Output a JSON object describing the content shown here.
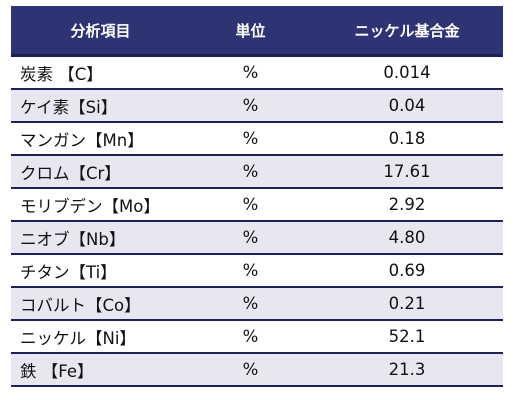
{
  "table": {
    "headers": [
      "分析項目",
      "単位",
      "ニッケル基合金"
    ],
    "rows": [
      {
        "item": "炭素 【C】",
        "unit": "%",
        "value": "0.014"
      },
      {
        "item": "ケイ素【Si】",
        "unit": "%",
        "value": "0.04"
      },
      {
        "item": "マンガン【Mn】",
        "unit": "%",
        "value": "0.18"
      },
      {
        "item": "クロム【Cr】",
        "unit": "%",
        "value": "17.61"
      },
      {
        "item": "モリブデン【Mo】",
        "unit": "%",
        "value": "2.92"
      },
      {
        "item": "ニオブ【Nb】",
        "unit": "%",
        "value": "4.80"
      },
      {
        "item": "チタン【Ti】",
        "unit": "%",
        "value": "0.69"
      },
      {
        "item": "コバルト【Co】",
        "unit": "%",
        "value": "0.21"
      },
      {
        "item": "ニッケル【Ni】",
        "unit": "%",
        "value": "52.1"
      },
      {
        "item": "鉄 【Fe】",
        "unit": "%",
        "value": "21.3"
      }
    ]
  },
  "colors": {
    "header_bg": "#2e3473",
    "header_text": "#ffffff",
    "stripe_bg": "#e6e7f1",
    "row_border": "#1c2157"
  }
}
